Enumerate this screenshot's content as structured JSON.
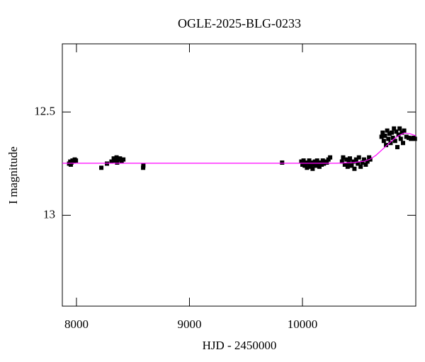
{
  "chart_data": {
    "type": "scatter",
    "title": "OGLE-2025-BLG-0233",
    "x_label": "HJD - 2450000",
    "y_label": "I magnitude",
    "xlim": [
      7875,
      11003
    ],
    "ylim": [
      12.17,
      13.44
    ],
    "y_inverted": true,
    "xticks": [
      8000,
      9000,
      10000
    ],
    "yticks": [
      12.5,
      13
    ],
    "series": [
      {
        "color": "#000000",
        "marker": "square",
        "x": [
          7935,
          7945,
          7950,
          7955,
          7965,
          7975,
          7985,
          7995,
          8220,
          8270,
          8310,
          8330,
          8345,
          8355,
          8360,
          8370,
          8385,
          8400,
          8415,
          8590,
          8592,
          9820,
          9990,
          10000,
          10010,
          10020,
          10030,
          10040,
          10050,
          10060,
          10070,
          10080,
          10090,
          10100,
          10110,
          10120,
          10130,
          10140,
          10150,
          10160,
          10170,
          10180,
          10190,
          10200,
          10215,
          10230,
          10245,
          10350,
          10360,
          10375,
          10390,
          10400,
          10410,
          10420,
          10435,
          10450,
          10460,
          10475,
          10490,
          10500,
          10515,
          10530,
          10545,
          10560,
          10575,
          10590,
          10600,
          10700,
          10710,
          10720,
          10730,
          10740,
          10750,
          10760,
          10770,
          10780,
          10790,
          10800,
          10810,
          10820,
          10830,
          10840,
          10850,
          10860,
          10870,
          10880,
          10890,
          10900,
          10920,
          10940,
          10960,
          10980,
          10995
        ],
        "values": [
          12.75,
          12.74,
          12.755,
          12.745,
          12.735,
          12.74,
          12.73,
          12.735,
          12.77,
          12.75,
          12.74,
          12.725,
          12.735,
          12.72,
          12.745,
          12.73,
          12.725,
          12.74,
          12.73,
          12.77,
          12.76,
          12.745,
          12.74,
          12.755,
          12.735,
          12.76,
          12.745,
          12.77,
          12.75,
          12.735,
          12.765,
          12.745,
          12.775,
          12.755,
          12.74,
          12.76,
          12.735,
          12.75,
          12.765,
          12.745,
          12.755,
          12.735,
          12.75,
          12.74,
          12.745,
          12.73,
          12.72,
          12.74,
          12.72,
          12.755,
          12.73,
          12.765,
          12.745,
          12.725,
          12.76,
          12.74,
          12.775,
          12.73,
          12.75,
          12.72,
          12.765,
          12.745,
          12.73,
          12.755,
          12.74,
          12.72,
          12.73,
          12.62,
          12.6,
          12.64,
          12.615,
          12.66,
          12.59,
          12.63,
          12.605,
          12.65,
          12.6,
          12.625,
          12.58,
          12.64,
          12.595,
          12.67,
          12.61,
          12.58,
          12.63,
          12.6,
          12.65,
          12.59,
          12.62,
          12.625,
          12.63,
          12.625,
          12.63
        ]
      },
      {
        "color": "#ff00ff",
        "marker": "line",
        "x": [
          7875,
          10300,
          10450,
          10550,
          10600,
          10650,
          10700,
          10750,
          10800,
          10850,
          10900,
          10950,
          11003
        ],
        "values": [
          12.748,
          12.748,
          12.745,
          12.738,
          12.728,
          12.71,
          12.685,
          12.66,
          12.635,
          12.615,
          12.602,
          12.605,
          12.615
        ]
      }
    ]
  }
}
